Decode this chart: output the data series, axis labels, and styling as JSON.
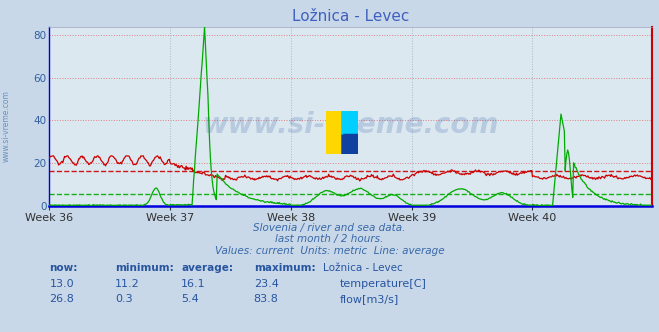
{
  "title": "Ložnica - Levec",
  "bg_color": "#c8d8e8",
  "plot_bg_color": "#dce8f0",
  "grid_color_h": "#e08080",
  "grid_color_v": "#a0b0c0",
  "xlabel_weeks": [
    "Week 36",
    "Week 37",
    "Week 38",
    "Week 39",
    "Week 40"
  ],
  "ylabel_values": [
    0,
    20,
    40,
    60,
    80
  ],
  "ylim": [
    0,
    84
  ],
  "xlim_pts": 720,
  "temp_color": "#cc0000",
  "flow_color": "#00aa00",
  "temp_avg": 16.1,
  "flow_avg": 5.4,
  "temp_now": 13.0,
  "temp_min": 11.2,
  "temp_avg_display": 16.1,
  "temp_max": 23.4,
  "flow_now": 26.8,
  "flow_min": 0.3,
  "flow_avg_display": 5.4,
  "flow_max": 83.8,
  "watermark": "www.si-vreme.com",
  "subtitle1": "Slovenia / river and sea data.",
  "subtitle2": "last month / 2 hours.",
  "subtitle3": "Values: current  Units: metric  Line: average",
  "text_color": "#3868a8",
  "title_color": "#4060c0",
  "n_points": 720,
  "week_tick_positions": [
    0,
    144,
    288,
    432,
    576
  ],
  "bottom_spine_color": "#0000dd",
  "right_spine_color": "#cc0000",
  "left_spine_color": "#0000dd",
  "top_spine_color": "#cc0000"
}
